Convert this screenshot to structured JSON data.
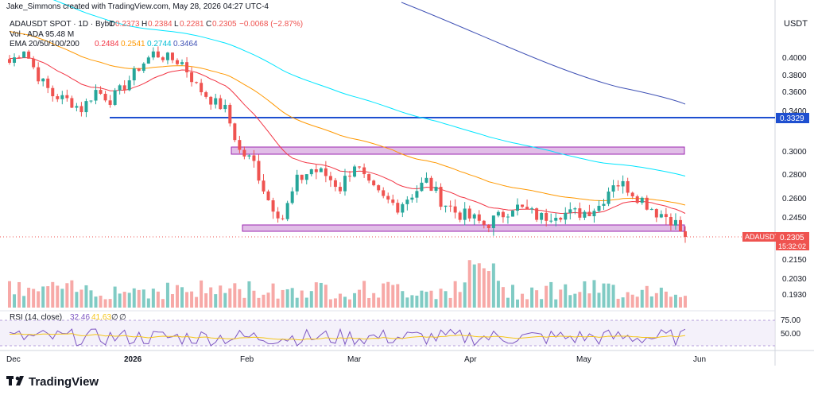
{
  "header": {
    "credit": "Jake_Simmons created with TradingView.com, May 28, 2026 04:27 UTC-4",
    "symbol_line": "ADAUSDT SPOT · 1D · Bybit",
    "ohlc": {
      "o_label": "O",
      "o": "0.2373",
      "h_label": "H",
      "h": "0.2384",
      "l_label": "L",
      "l": "0.2281",
      "c_label": "C",
      "c": "0.2305",
      "change": "−0.0068 (−2.87%)"
    },
    "vol_line": "Vol · ADA  95.48 M",
    "ema_label": "EMA 20/50/100/200",
    "ema_values": [
      "0.2484",
      "0.2541",
      "0.2744",
      "0.3464"
    ]
  },
  "price_axis": {
    "currency": "USDT",
    "ticks": [
      "0.4000",
      "0.3800",
      "0.3600",
      "0.3400",
      "0.3000",
      "0.2800",
      "0.2600",
      "0.2450",
      "0.2150",
      "0.2030",
      "0.1930"
    ],
    "level_label": "0.3329",
    "last_symbol": "ADAUSDT",
    "last_price": "0.2305",
    "countdown": "15:32:02"
  },
  "rsi": {
    "label": "RSI (14, close)",
    "value": "32.46",
    "ma_value": "41.63",
    "extra1": "∅",
    "extra2": "∅",
    "ticks": [
      "75.00",
      "50.00"
    ]
  },
  "time_axis": {
    "labels": [
      "Dec",
      "2026",
      "Feb",
      "Mar",
      "Apr",
      "May",
      "Jun"
    ]
  },
  "brand": {
    "name": "TradingView"
  },
  "colors": {
    "up": "#26a69a",
    "down": "#ef5350",
    "ema20": "#f23645",
    "ema50": "#ff9800",
    "ema100": "#00e5ff",
    "ema200": "#3f51b5",
    "level": "#1e4fd0",
    "zone_fill": "#e1bee7",
    "zone_stroke": "#9c27b0",
    "rsi_line": "#7e57c2",
    "rsi_ma": "#f5c518"
  },
  "chart_data": {
    "type": "candlestick",
    "title": "ADAUSDT SPOT · 1D · Bybit",
    "xlabel": "",
    "ylabel": "",
    "x_range": [
      "Dec",
      "Jun"
    ],
    "ylim": [
      0.193,
      0.4
    ],
    "candles_approx": {
      "dec": [
        0.395,
        0.41,
        0.38,
        0.36,
        0.355,
        0.345,
        0.365
      ],
      "jan": [
        0.355,
        0.37,
        0.39,
        0.405,
        0.4,
        0.395,
        0.37,
        0.355,
        0.345
      ],
      "feb": [
        0.3,
        0.29,
        0.26,
        0.245,
        0.275,
        0.285,
        0.28,
        0.27
      ],
      "mar": [
        0.29,
        0.27,
        0.26,
        0.255,
        0.265,
        0.275,
        0.26,
        0.25
      ],
      "apr": [
        0.245,
        0.24,
        0.245,
        0.255,
        0.25,
        0.245,
        0.25,
        0.248
      ],
      "may": [
        0.25,
        0.255,
        0.275,
        0.27,
        0.26,
        0.25,
        0.245,
        0.2305
      ]
    },
    "resistance_level": 0.3329,
    "zones": [
      [
        0.296,
        0.303
      ],
      [
        0.237,
        0.242
      ]
    ],
    "last_close": 0.2305,
    "legend_position": "top-left",
    "grid": false
  }
}
